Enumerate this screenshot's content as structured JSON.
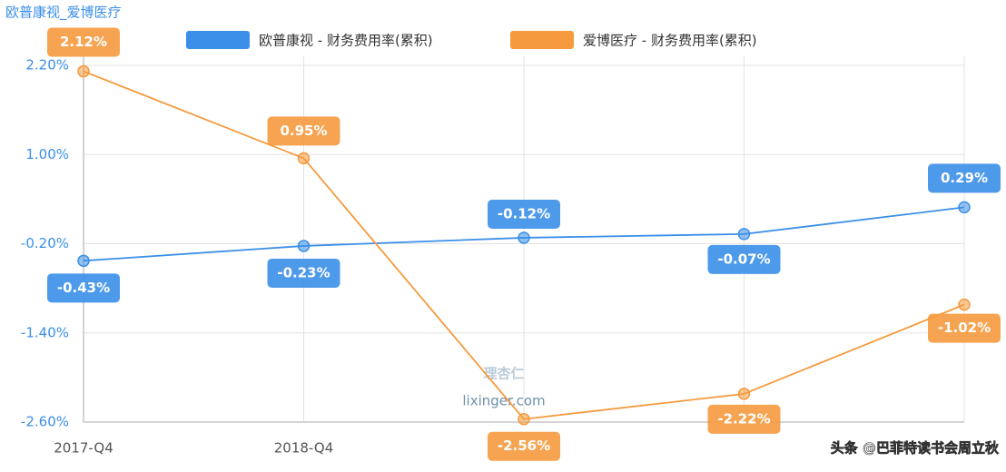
{
  "chart_data": {
    "type": "line",
    "title": "欧普康视_爱博医疗",
    "categories": [
      "2017-Q4",
      "2018-Q4",
      null,
      null,
      null
    ],
    "series": [
      {
        "name": "欧普康视 - 财务费用率(累积)",
        "color": "#3b8fe8",
        "values": [
          -0.43,
          -0.23,
          -0.12,
          -0.07,
          0.29
        ],
        "value_labels": [
          "-0.43%",
          "-0.23%",
          "-0.12%",
          "-0.07%",
          "0.29%"
        ]
      },
      {
        "name": "爱博医疗 - 财务费用率(累积)",
        "color": "#f59a3e",
        "values": [
          2.12,
          0.95,
          -2.56,
          -2.22,
          -1.02
        ],
        "value_labels": [
          "2.12%",
          "0.95%",
          "-2.56%",
          "-2.22%",
          "-1.02%"
        ]
      }
    ],
    "ylim": [
      -2.6,
      2.2
    ],
    "yticks": [
      {
        "value": -2.6,
        "label": "-2.60%"
      },
      {
        "value": -1.4,
        "label": "-1.40%"
      },
      {
        "value": -0.2,
        "label": "-0.20%"
      },
      {
        "value": 1.0,
        "label": "1.00%"
      },
      {
        "value": 2.2,
        "label": "2.20%"
      }
    ],
    "grid": true,
    "watermark": {
      "logo": "理杏仁",
      "site": "lixinger.com",
      "credit": "头条 @巴菲特读书会周立秋"
    }
  }
}
